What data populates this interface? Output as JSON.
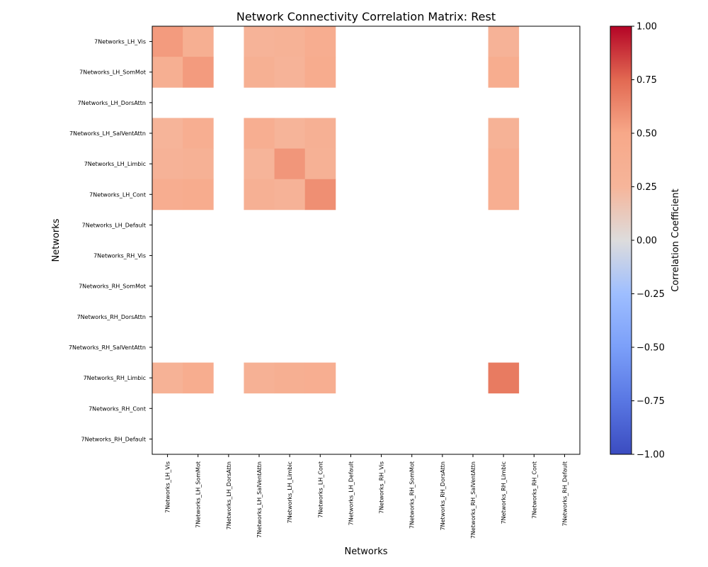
{
  "chart_data": {
    "type": "heatmap",
    "title": "Network Connectivity Correlation Matrix: Rest",
    "xlabel": "Networks",
    "ylabel": "Networks",
    "colorbar_label": "Correlation Coefficient",
    "vmin": -1.0,
    "vmax": 1.0,
    "colorbar_ticks": [
      "1.00",
      "0.75",
      "0.50",
      "0.25",
      "0.00",
      "−0.25",
      "−0.50",
      "−0.75",
      "−1.00"
    ],
    "colormap": "coolwarm",
    "labels": [
      "7Networks_LH_Vis",
      "7Networks_LH_SomMot",
      "7Networks_LH_DorsAttn",
      "7Networks_LH_SalVentAttn",
      "7Networks_LH_Limbic",
      "7Networks_LH_Cont",
      "7Networks_LH_Default",
      "7Networks_RH_Vis",
      "7Networks_RH_SomMot",
      "7Networks_RH_DorsAttn",
      "7Networks_RH_SalVentAttn",
      "7Networks_RH_Limbic",
      "7Networks_RH_Cont",
      "7Networks_RH_Default"
    ],
    "matrix": [
      [
        0.55,
        0.37,
        null,
        0.28,
        0.31,
        0.4,
        null,
        null,
        null,
        null,
        null,
        0.3,
        null,
        null
      ],
      [
        0.37,
        0.55,
        null,
        0.35,
        0.28,
        0.43,
        null,
        null,
        null,
        null,
        null,
        0.41,
        null,
        null
      ],
      [
        null,
        null,
        null,
        null,
        null,
        null,
        null,
        null,
        null,
        null,
        null,
        null,
        null,
        null
      ],
      [
        0.26,
        0.38,
        null,
        0.38,
        0.27,
        0.34,
        null,
        null,
        null,
        null,
        null,
        0.31,
        null,
        null
      ],
      [
        0.3,
        0.32,
        null,
        0.27,
        0.57,
        0.33,
        null,
        null,
        null,
        null,
        null,
        0.38,
        null,
        null
      ],
      [
        0.4,
        0.43,
        null,
        0.34,
        0.3,
        0.6,
        null,
        null,
        null,
        null,
        null,
        0.38,
        null,
        null
      ],
      [
        null,
        null,
        null,
        null,
        null,
        null,
        null,
        null,
        null,
        null,
        null,
        null,
        null,
        null
      ],
      [
        null,
        null,
        null,
        null,
        null,
        null,
        null,
        null,
        null,
        null,
        null,
        null,
        null,
        null
      ],
      [
        null,
        null,
        null,
        null,
        null,
        null,
        null,
        null,
        null,
        null,
        null,
        null,
        null,
        null
      ],
      [
        null,
        null,
        null,
        null,
        null,
        null,
        null,
        null,
        null,
        null,
        null,
        null,
        null,
        null
      ],
      [
        null,
        null,
        null,
        null,
        null,
        null,
        null,
        null,
        null,
        null,
        null,
        null,
        null,
        null
      ],
      [
        0.31,
        0.41,
        null,
        0.33,
        0.37,
        0.38,
        null,
        null,
        null,
        null,
        null,
        0.68,
        null,
        null
      ],
      [
        null,
        null,
        null,
        null,
        null,
        null,
        null,
        null,
        null,
        null,
        null,
        null,
        null,
        null
      ],
      [
        null,
        null,
        null,
        null,
        null,
        null,
        null,
        null,
        null,
        null,
        null,
        null,
        null,
        null
      ]
    ]
  }
}
